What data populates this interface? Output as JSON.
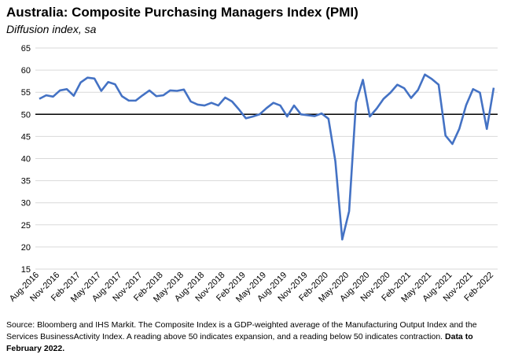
{
  "chart_data": {
    "type": "line",
    "title": "Australia:  Composite Purchasing Managers Index (PMI)",
    "subtitle": "Diffusion index, sa",
    "xlabel": "",
    "ylabel": "",
    "ylim": [
      15,
      65
    ],
    "yticks": [
      15,
      20,
      25,
      30,
      35,
      40,
      45,
      50,
      55,
      60,
      65
    ],
    "reference_line": 50,
    "grid": "horizontal",
    "line_color": "#4472C4",
    "x": [
      "Aug-2016",
      "Sep-2016",
      "Oct-2016",
      "Nov-2016",
      "Dec-2016",
      "Jan-2017",
      "Feb-2017",
      "Mar-2017",
      "Apr-2017",
      "May-2017",
      "Jun-2017",
      "Jul-2017",
      "Aug-2017",
      "Sep-2017",
      "Oct-2017",
      "Nov-2017",
      "Dec-2017",
      "Jan-2018",
      "Feb-2018",
      "Mar-2018",
      "Apr-2018",
      "May-2018",
      "Jun-2018",
      "Jul-2018",
      "Aug-2018",
      "Sep-2018",
      "Oct-2018",
      "Nov-2018",
      "Dec-2018",
      "Jan-2019",
      "Feb-2019",
      "Mar-2019",
      "Apr-2019",
      "May-2019",
      "Jun-2019",
      "Jul-2019",
      "Aug-2019",
      "Sep-2019",
      "Oct-2019",
      "Nov-2019",
      "Dec-2019",
      "Jan-2020",
      "Feb-2020",
      "Mar-2020",
      "Apr-2020",
      "May-2020",
      "Jun-2020",
      "Jul-2020",
      "Aug-2020",
      "Sep-2020",
      "Oct-2020",
      "Nov-2020",
      "Dec-2020",
      "Jan-2021",
      "Feb-2021",
      "Mar-2021",
      "Apr-2021",
      "May-2021",
      "Jun-2021",
      "Jul-2021",
      "Aug-2021",
      "Sep-2021",
      "Oct-2021",
      "Nov-2021",
      "Dec-2021",
      "Jan-2022",
      "Feb-2022"
    ],
    "xtick_labels": [
      "Aug-2016",
      "Nov-2016",
      "Feb-2017",
      "May-2017",
      "Aug-2017",
      "Nov-2017",
      "Feb-2018",
      "May-2018",
      "Aug-2018",
      "Nov-2018",
      "Feb-2019",
      "May-2019",
      "Aug-2019",
      "Nov-2019",
      "Feb-2020",
      "May-2020",
      "Aug-2020",
      "Nov-2020",
      "Feb-2021",
      "May-2021",
      "Aug-2021",
      "Nov-2021",
      "Feb-2022"
    ],
    "series": [
      {
        "values": [
          53.5,
          54.3,
          54.0,
          55.4,
          55.7,
          54.2,
          57.2,
          58.3,
          58.1,
          55.3,
          57.3,
          56.8,
          54.1,
          53.1,
          53.1,
          54.3,
          55.4,
          54.1,
          54.3,
          55.4,
          55.3,
          55.6,
          52.9,
          52.2,
          52.0,
          52.6,
          52.0,
          53.8,
          52.9,
          51.1,
          49.1,
          49.5,
          50.0,
          51.4,
          52.6,
          52.0,
          49.5,
          52.0,
          50.0,
          49.8,
          49.6,
          50.2,
          49.0,
          39.4,
          21.7,
          28.1,
          52.7,
          57.8,
          49.5,
          51.3,
          53.5,
          54.9,
          56.7,
          55.9,
          53.7,
          55.5,
          59.0,
          58.0,
          56.7,
          45.2,
          43.3,
          46.7,
          52.1,
          55.7,
          54.9,
          46.7,
          56.0
        ]
      }
    ]
  },
  "source": {
    "text": "Source: Bloomberg and IHS Markit. The Composite Index is a GDP-weighted average of the Manufacturing Output Index and the Services BusinessActivity Index.  A reading above 50 indicates expansion, and a reading below 50 indicates contraction. ",
    "bold": "Data to February 2022."
  }
}
